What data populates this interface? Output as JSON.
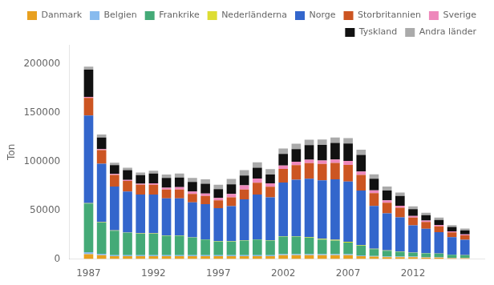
{
  "chart_data": {
    "type": "bar",
    "stacked": true,
    "ylabel": "Ton",
    "x": [
      1987,
      1988,
      1989,
      1990,
      1991,
      1992,
      1993,
      1994,
      1995,
      1996,
      1997,
      1998,
      1999,
      2000,
      2001,
      2002,
      2003,
      2004,
      2005,
      2006,
      2007,
      2008,
      2009,
      2010,
      2011,
      2012,
      2013,
      2014,
      2015,
      2016
    ],
    "xlim": [
      1985.5,
      2017.5
    ],
    "xticks": [
      1987,
      1992,
      1997,
      2002,
      2007,
      2012
    ],
    "ylim": [
      0,
      220000
    ],
    "yticks": [
      0,
      50000,
      100000,
      150000,
      200000
    ],
    "grid": false,
    "legend": "upper right",
    "series": [
      {
        "name": "Danmark",
        "color": "#E8A020",
        "values": [
          5000,
          4000,
          3000,
          3000,
          3000,
          3000,
          3000,
          3000,
          3000,
          3000,
          3000,
          3000,
          3000,
          3000,
          3000,
          4000,
          4000,
          4000,
          4000,
          4000,
          4000,
          3000,
          2500,
          2000,
          2000,
          2000,
          1500,
          1500,
          1000,
          1000
        ]
      },
      {
        "name": "Belgien",
        "color": "#88BBEE",
        "values": [
          2000,
          1500,
          1000,
          1000,
          1000,
          1000,
          1000,
          1000,
          1000,
          1000,
          1000,
          1000,
          1000,
          1000,
          1000,
          1000,
          1000,
          1000,
          1000,
          1000,
          1000,
          800,
          700,
          600,
          500,
          500,
          400,
          400,
          300,
          300
        ]
      },
      {
        "name": "Frankrike",
        "color": "#44AA77",
        "values": [
          50000,
          32000,
          25000,
          23000,
          22000,
          22000,
          20000,
          20000,
          18000,
          16000,
          14000,
          14000,
          15000,
          16000,
          15000,
          18000,
          18000,
          17000,
          15000,
          14000,
          12000,
          10000,
          7000,
          6000,
          5000,
          4000,
          4000,
          3500,
          3000,
          2500
        ]
      },
      {
        "name": "Nederländerna",
        "color": "#DDDD33",
        "values": [
          500,
          400,
          400,
          300,
          300,
          300,
          300,
          300,
          300,
          300,
          300,
          300,
          300,
          300,
          300,
          500,
          500,
          600,
          800,
          800,
          700,
          600,
          400,
          300,
          300,
          200,
          200,
          200,
          100,
          100
        ]
      },
      {
        "name": "Norge",
        "color": "#3366CC",
        "values": [
          90000,
          60000,
          45000,
          42000,
          40000,
          40000,
          38000,
          38000,
          36000,
          36000,
          34000,
          36000,
          42000,
          46000,
          44000,
          55000,
          58000,
          60000,
          60000,
          62000,
          62000,
          56000,
          44000,
          38000,
          35000,
          28000,
          25000,
          22000,
          18000,
          16000
        ]
      },
      {
        "name": "Storbritannien",
        "color": "#CC5522",
        "values": [
          18000,
          14000,
          12000,
          11000,
          10000,
          10000,
          9000,
          9000,
          8500,
          8500,
          8000,
          9000,
          10000,
          12000,
          11000,
          14000,
          15000,
          16000,
          17000,
          17000,
          17000,
          16000,
          13000,
          11000,
          10000,
          8000,
          7000,
          6000,
          5000,
          4500
        ]
      },
      {
        "name": "Sverige",
        "color": "#EE88BB",
        "values": [
          1000,
          1000,
          1000,
          1000,
          1000,
          1500,
          2000,
          2500,
          2500,
          2500,
          2500,
          3500,
          4500,
          4500,
          3500,
          3500,
          3500,
          3500,
          3500,
          3500,
          4000,
          3500,
          3000,
          2500,
          2000,
          1500,
          1500,
          1500,
          1000,
          1000
        ]
      },
      {
        "name": "Tyskland",
        "color": "#111111",
        "values": [
          28000,
          12000,
          9000,
          10000,
          9000,
          10000,
          10000,
          10000,
          10000,
          10000,
          9000,
          10000,
          10000,
          11000,
          9000,
          12000,
          13000,
          15000,
          16000,
          17000,
          18000,
          17000,
          12000,
          10000,
          10000,
          7000,
          5500,
          5000,
          4500,
          4000
        ]
      },
      {
        "name": "Andra länder",
        "color": "#AAAAAA",
        "values": [
          3000,
          3000,
          2500,
          2500,
          2500,
          3000,
          3500,
          4000,
          4000,
          4500,
          4500,
          5500,
          5500,
          5500,
          5500,
          5500,
          5500,
          5500,
          5500,
          5500,
          5500,
          5500,
          4500,
          4000,
          3500,
          3000,
          2500,
          2500,
          2000,
          2000
        ]
      }
    ]
  }
}
